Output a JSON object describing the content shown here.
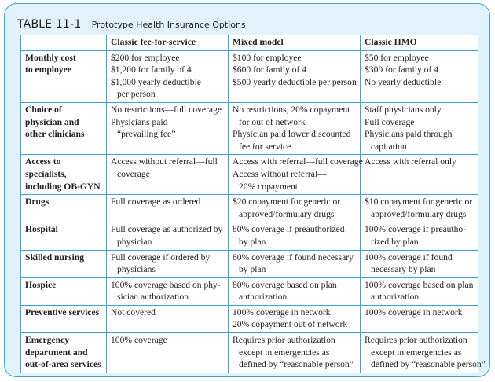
{
  "table": {
    "number": "TABLE 11-1",
    "caption": "Prototype Health Insurance Options",
    "columns": [
      "",
      "Classic fee-for-service",
      "Mixed model",
      "Classic HMO"
    ],
    "rows": [
      {
        "label": [
          "Monthly cost",
          "to employee"
        ],
        "cells": [
          [
            [
              "$200 for employee"
            ],
            [
              "$1,200 for family of 4"
            ],
            [
              "$1,000 yearly deductible",
              "per person"
            ]
          ],
          [
            [
              "$100 for employee"
            ],
            [
              "$600 for family of 4"
            ],
            [
              "$500 yearly deductible per person"
            ]
          ],
          [
            [
              "$50 for employee"
            ],
            [
              "$300 for family of 4"
            ],
            [
              "No yearly deductible"
            ]
          ]
        ]
      },
      {
        "label": [
          "Choice of",
          "physician and",
          "other clinicians"
        ],
        "cells": [
          [
            [
              "No restrictions—full coverage"
            ],
            [
              "Physicians paid",
              "“prevailing fee”"
            ]
          ],
          [
            [
              "No restrictions, 20% copayment",
              "for out of network"
            ],
            [
              "Physician paid lower discounted",
              "fee for service"
            ]
          ],
          [
            [
              "Staff physicians only"
            ],
            [
              "Full coverage"
            ],
            [
              "Physicians paid through",
              "capitation"
            ]
          ]
        ]
      },
      {
        "label": [
          "Access to",
          "specialists,",
          "including OB-GYN"
        ],
        "cells": [
          [
            [
              "Access without referral—full",
              "coverage"
            ]
          ],
          [
            [
              "Access with referral—full coverage"
            ],
            [
              "Access without referral—",
              "20% copayment"
            ]
          ],
          [
            [
              "Access with referral only"
            ]
          ]
        ]
      },
      {
        "label": [
          "Drugs"
        ],
        "cells": [
          [
            [
              "Full coverage as ordered"
            ]
          ],
          [
            [
              "$20 copayment for generic or",
              "approved/formulary drugs"
            ]
          ],
          [
            [
              "$10 copayment for generic or",
              "approved/formulary drugs"
            ]
          ]
        ]
      },
      {
        "label": [
          "Hospital"
        ],
        "cells": [
          [
            [
              "Full coverage as authorized by",
              "physician"
            ]
          ],
          [
            [
              "80% coverage if preauthorized",
              "by plan"
            ]
          ],
          [
            [
              "100% coverage if preautho-",
              "rized by plan"
            ]
          ]
        ]
      },
      {
        "label": [
          "Skilled nursing"
        ],
        "cells": [
          [
            [
              "Full coverage if ordered by",
              "physicians"
            ]
          ],
          [
            [
              "80% coverage if found necessary",
              "by plan"
            ]
          ],
          [
            [
              "100% coverage if found",
              "necessary by plan"
            ]
          ]
        ]
      },
      {
        "label": [
          "Hospice"
        ],
        "cells": [
          [
            [
              "100% coverage based on phy-",
              "sician authorization"
            ]
          ],
          [
            [
              "80% coverage based on plan",
              "authorization"
            ]
          ],
          [
            [
              "100% coverage based on plan",
              "authorization"
            ]
          ]
        ]
      },
      {
        "label": [
          "Preventive services"
        ],
        "cells": [
          [
            [
              "Not covered"
            ]
          ],
          [
            [
              "100% coverage in network"
            ],
            [
              "20% copayment out of network"
            ]
          ],
          [
            [
              "100% coverage in network"
            ]
          ]
        ]
      },
      {
        "label": [
          "Emergency",
          "department and",
          "out-of-area services"
        ],
        "cells": [
          [
            [
              "100% coverage"
            ]
          ],
          [
            [
              "Requires prior authorization",
              "except in emergencies as",
              "defined by “reasonable person”"
            ]
          ],
          [
            [
              "Requires prior authorization",
              "except in emergencies as",
              "defined by “reasonable person”"
            ]
          ]
        ]
      }
    ]
  }
}
